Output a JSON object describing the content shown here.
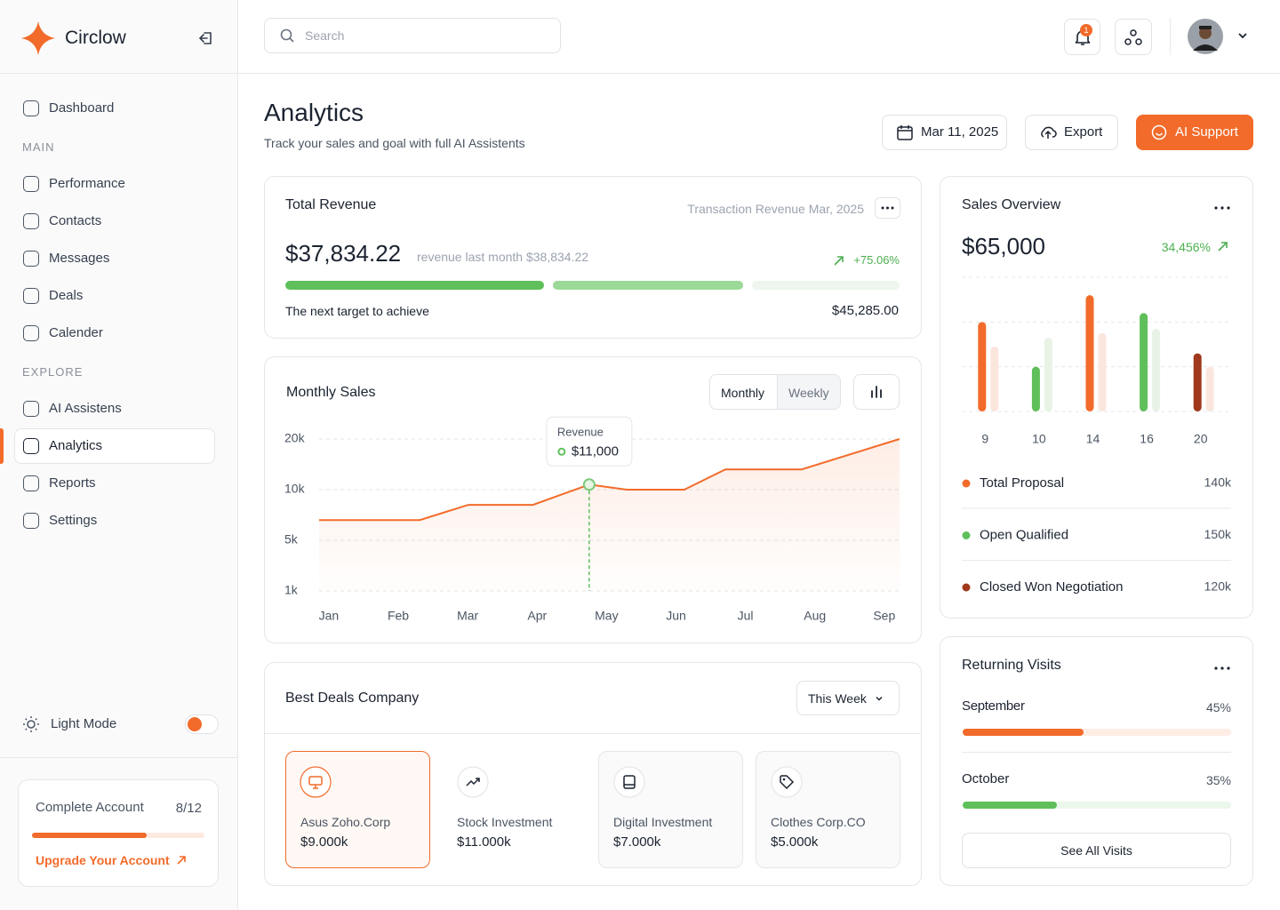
{
  "sidebar": {
    "brand": "Circlow",
    "nav_top": [
      "Dashboard"
    ],
    "sections": [
      {
        "title": "MAIN",
        "items": [
          "Performance",
          "Contacts",
          "Messages",
          "Deals",
          "Calender"
        ]
      },
      {
        "title": "EXPLORE",
        "items": [
          "AI Assistens",
          "Analytics",
          "Reports",
          "Settings"
        ]
      }
    ],
    "theme_toggle": "Light Mode",
    "account": {
      "title": "Complete Account",
      "done": 8,
      "total": 12,
      "progress_label": "8/12",
      "link": "Upgrade Your Account"
    }
  },
  "header": {
    "search_placeholder": "Search",
    "notifications": 1
  },
  "page": {
    "title": "Analytics",
    "subtitle": "Track your sales and goal with full AI Assistents",
    "date": "Mar 11, 2025",
    "buttons": [
      "Export",
      "AI Support"
    ]
  },
  "revenue": {
    "title": "Total Revenue",
    "caption": "Transaction Revenue Mar, 2025",
    "amount": "$37,834.22",
    "last_month": "revenue last month $38,834.22",
    "change": "+75.06%",
    "target_label": "The next target to achieve",
    "target": "$45,285.00"
  },
  "chart_data": [
    {
      "type": "line",
      "title": "Monthly Sales",
      "tabs": [
        "Monthly",
        "Weekly"
      ],
      "x": [
        -0.14,
        1.31,
        2.01,
        2.94,
        3.75,
        4.29,
        5.12,
        5.71,
        6.81,
        8.22
      ],
      "values": [
        7000,
        7000,
        8500,
        8500,
        11000,
        10000,
        10000,
        14000,
        14000,
        20000
      ],
      "color": "#f26b2a",
      "xlim": [
        -0.14,
        8.22
      ],
      "xticks": [
        {
          "value": 0,
          "label": "Jan"
        },
        {
          "value": 1,
          "label": "Feb"
        },
        {
          "value": 2,
          "label": "Mar"
        },
        {
          "value": 3,
          "label": "Apr"
        },
        {
          "value": 4,
          "label": "May"
        },
        {
          "value": 5,
          "label": "Jun"
        },
        {
          "value": 6,
          "label": "Jul"
        },
        {
          "value": 7,
          "label": "Aug"
        },
        {
          "value": 8,
          "label": "Sep"
        }
      ],
      "ylim": [
        1000,
        20000
      ],
      "yticks": [
        {
          "value": 1000,
          "label": "1k"
        },
        {
          "value": 5000,
          "label": "5k"
        },
        {
          "value": 10000,
          "label": "10k"
        },
        {
          "value": 20000,
          "label": "20k"
        }
      ],
      "grid": true,
      "tooltip": {
        "title": "Revenue",
        "x": 3.75,
        "value": 11000,
        "value_label": "$11,000"
      }
    },
    {
      "type": "bar",
      "title": "Sales Overview",
      "total": "$65,000",
      "change": "34,456%",
      "categories": [
        "9",
        "10",
        "14",
        "16",
        "20"
      ],
      "series": [
        {
          "values": [
            2,
            1,
            2.6,
            2.2,
            1.3
          ],
          "colors": [
            "#f26b2a",
            "#5fbf5a",
            "#f26b2a",
            "#5fbf5a",
            "#a0391c"
          ]
        },
        {
          "values": [
            1.45,
            1.65,
            1.75,
            1.85,
            1
          ],
          "colors": [
            "#fbe6dd",
            "#e8f3e6",
            "#fbe6dd",
            "#e8f3e6",
            "#fbe6dd"
          ]
        }
      ],
      "ylim": [
        0,
        3
      ],
      "yticks": [
        0,
        1,
        2,
        3
      ],
      "grid": true,
      "legend": [
        {
          "name": "Total Proposal",
          "color": "#f26b2a",
          "value": "140k"
        },
        {
          "name": "Open Qualified",
          "color": "#5fbf5a",
          "value": "150k"
        },
        {
          "name": "Closed Won Negotiation",
          "color": "#a0391c",
          "value": "120k"
        }
      ]
    }
  ],
  "best_deals": {
    "title": "Best Deals Company",
    "filter": "This Week",
    "items": [
      {
        "name": "Asus Zoho.Corp",
        "value": "$9.000k"
      },
      {
        "name": "Stock Investment",
        "value": "$11.000k"
      },
      {
        "name": "Digital Investment",
        "value": "$7.000k"
      },
      {
        "name": "Clothes Corp.CO",
        "value": "$5.000k"
      }
    ]
  },
  "returning_visits": {
    "title": "Returning Visits",
    "items": [
      {
        "name": "September",
        "value": 45,
        "value_label": "45%",
        "color": "#f26b2a"
      },
      {
        "name": "October",
        "value": 35,
        "value_label": "35%",
        "color": "#5fbf5a"
      }
    ],
    "button": "See All Visits"
  }
}
